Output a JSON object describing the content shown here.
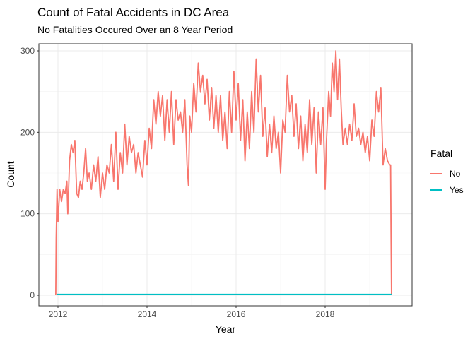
{
  "chart_data": {
    "type": "line",
    "title": "Count of Fatal Accidents in DC Area",
    "subtitle": "No Fatalities Occured Over an 8 Year Period",
    "xlabel": "Year",
    "ylabel": "Count",
    "xlim": [
      2011.95,
      2019.55
    ],
    "ylim": [
      0,
      300
    ],
    "x_ticks": [
      2012,
      2014,
      2016,
      2018
    ],
    "y_ticks": [
      0,
      100,
      200,
      300
    ],
    "grid": true,
    "legend_title": "Fatal",
    "legend_position": "right",
    "series": [
      {
        "name": "No",
        "color": "#F8766D",
        "points": [
          [
            2011.95,
            0
          ],
          [
            2011.96,
            70
          ],
          [
            2011.98,
            130
          ],
          [
            2012.0,
            90
          ],
          [
            2012.04,
            130
          ],
          [
            2012.08,
            115
          ],
          [
            2012.12,
            130
          ],
          [
            2012.16,
            125
          ],
          [
            2012.2,
            140
          ],
          [
            2012.22,
            100
          ],
          [
            2012.26,
            165
          ],
          [
            2012.3,
            185
          ],
          [
            2012.34,
            175
          ],
          [
            2012.38,
            190
          ],
          [
            2012.42,
            125
          ],
          [
            2012.46,
            120
          ],
          [
            2012.5,
            140
          ],
          [
            2012.54,
            130
          ],
          [
            2012.58,
            150
          ],
          [
            2012.62,
            180
          ],
          [
            2012.66,
            140
          ],
          [
            2012.7,
            150
          ],
          [
            2012.75,
            130
          ],
          [
            2012.8,
            160
          ],
          [
            2012.85,
            140
          ],
          [
            2012.9,
            170
          ],
          [
            2012.95,
            120
          ],
          [
            2013.0,
            150
          ],
          [
            2013.05,
            130
          ],
          [
            2013.1,
            160
          ],
          [
            2013.15,
            150
          ],
          [
            2013.2,
            185
          ],
          [
            2013.25,
            140
          ],
          [
            2013.3,
            200
          ],
          [
            2013.35,
            130
          ],
          [
            2013.4,
            175
          ],
          [
            2013.45,
            150
          ],
          [
            2013.5,
            210
          ],
          [
            2013.55,
            160
          ],
          [
            2013.6,
            195
          ],
          [
            2013.65,
            175
          ],
          [
            2013.7,
            185
          ],
          [
            2013.75,
            150
          ],
          [
            2013.8,
            175
          ],
          [
            2013.85,
            160
          ],
          [
            2013.9,
            145
          ],
          [
            2013.95,
            190
          ],
          [
            2014.0,
            160
          ],
          [
            2014.05,
            205
          ],
          [
            2014.1,
            180
          ],
          [
            2014.15,
            240
          ],
          [
            2014.2,
            210
          ],
          [
            2014.25,
            250
          ],
          [
            2014.3,
            220
          ],
          [
            2014.35,
            245
          ],
          [
            2014.4,
            190
          ],
          [
            2014.45,
            240
          ],
          [
            2014.5,
            200
          ],
          [
            2014.55,
            250
          ],
          [
            2014.6,
            185
          ],
          [
            2014.65,
            240
          ],
          [
            2014.7,
            215
          ],
          [
            2014.75,
            225
          ],
          [
            2014.8,
            200
          ],
          [
            2014.85,
            240
          ],
          [
            2014.9,
            160
          ],
          [
            2014.93,
            135
          ],
          [
            2014.96,
            220
          ],
          [
            2015.0,
            200
          ],
          [
            2015.05,
            260
          ],
          [
            2015.1,
            225
          ],
          [
            2015.15,
            285
          ],
          [
            2015.2,
            250
          ],
          [
            2015.25,
            270
          ],
          [
            2015.3,
            235
          ],
          [
            2015.35,
            265
          ],
          [
            2015.4,
            215
          ],
          [
            2015.45,
            255
          ],
          [
            2015.5,
            205
          ],
          [
            2015.55,
            245
          ],
          [
            2015.6,
            200
          ],
          [
            2015.65,
            245
          ],
          [
            2015.7,
            190
          ],
          [
            2015.75,
            225
          ],
          [
            2015.8,
            180
          ],
          [
            2015.85,
            250
          ],
          [
            2015.9,
            200
          ],
          [
            2015.95,
            275
          ],
          [
            2016.0,
            215
          ],
          [
            2016.05,
            260
          ],
          [
            2016.1,
            190
          ],
          [
            2016.15,
            240
          ],
          [
            2016.2,
            165
          ],
          [
            2016.25,
            225
          ],
          [
            2016.3,
            180
          ],
          [
            2016.35,
            250
          ],
          [
            2016.4,
            200
          ],
          [
            2016.45,
            290
          ],
          [
            2016.5,
            225
          ],
          [
            2016.55,
            270
          ],
          [
            2016.6,
            195
          ],
          [
            2016.65,
            230
          ],
          [
            2016.7,
            170
          ],
          [
            2016.75,
            210
          ],
          [
            2016.8,
            175
          ],
          [
            2016.85,
            220
          ],
          [
            2016.9,
            180
          ],
          [
            2016.95,
            200
          ],
          [
            2017.0,
            150
          ],
          [
            2017.05,
            215
          ],
          [
            2017.1,
            200
          ],
          [
            2017.15,
            270
          ],
          [
            2017.2,
            225
          ],
          [
            2017.25,
            245
          ],
          [
            2017.3,
            195
          ],
          [
            2017.35,
            235
          ],
          [
            2017.4,
            180
          ],
          [
            2017.45,
            220
          ],
          [
            2017.5,
            165
          ],
          [
            2017.55,
            210
          ],
          [
            2017.6,
            175
          ],
          [
            2017.65,
            240
          ],
          [
            2017.7,
            185
          ],
          [
            2017.75,
            230
          ],
          [
            2017.8,
            150
          ],
          [
            2017.85,
            225
          ],
          [
            2017.9,
            185
          ],
          [
            2017.95,
            230
          ],
          [
            2018.0,
            130
          ],
          [
            2018.03,
            190
          ],
          [
            2018.08,
            250
          ],
          [
            2018.12,
            220
          ],
          [
            2018.16,
            285
          ],
          [
            2018.2,
            250
          ],
          [
            2018.24,
            300
          ],
          [
            2018.28,
            240
          ],
          [
            2018.32,
            290
          ],
          [
            2018.36,
            230
          ],
          [
            2018.4,
            185
          ],
          [
            2018.45,
            205
          ],
          [
            2018.5,
            185
          ],
          [
            2018.55,
            210
          ],
          [
            2018.6,
            190
          ],
          [
            2018.65,
            235
          ],
          [
            2018.7,
            195
          ],
          [
            2018.75,
            205
          ],
          [
            2018.8,
            185
          ],
          [
            2018.85,
            200
          ],
          [
            2018.9,
            175
          ],
          [
            2018.95,
            195
          ],
          [
            2019.0,
            165
          ],
          [
            2019.05,
            215
          ],
          [
            2019.1,
            195
          ],
          [
            2019.15,
            250
          ],
          [
            2019.2,
            225
          ],
          [
            2019.25,
            255
          ],
          [
            2019.3,
            160
          ],
          [
            2019.35,
            180
          ],
          [
            2019.4,
            165
          ],
          [
            2019.45,
            160
          ],
          [
            2019.47,
            160
          ],
          [
            2019.48,
            80
          ],
          [
            2019.49,
            0
          ]
        ]
      },
      {
        "name": "Yes",
        "color": "#00BFC4",
        "points": [
          [
            2011.97,
            1
          ],
          [
            2012.5,
            1
          ],
          [
            2013.0,
            1
          ],
          [
            2014.0,
            1
          ],
          [
            2015.0,
            1
          ],
          [
            2016.0,
            1
          ],
          [
            2017.0,
            1
          ],
          [
            2018.0,
            1
          ],
          [
            2019.0,
            1
          ],
          [
            2019.49,
            1
          ]
        ]
      }
    ]
  }
}
